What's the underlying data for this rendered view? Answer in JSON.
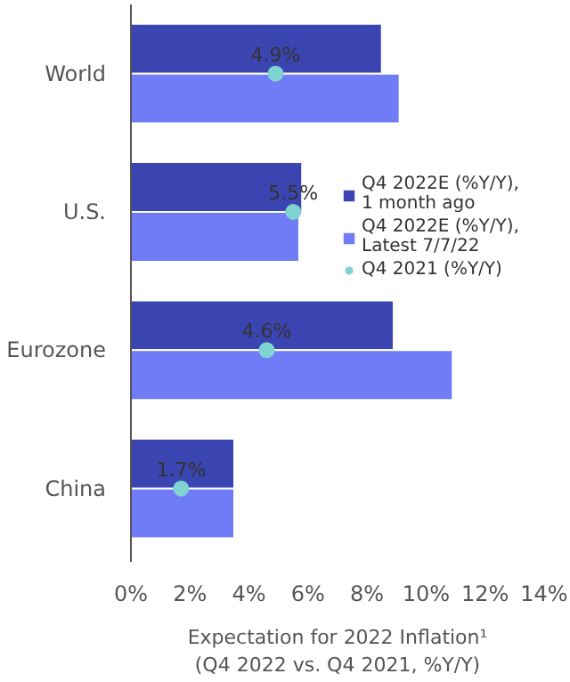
{
  "chart_data": {
    "type": "bar",
    "orientation": "horizontal",
    "categories": [
      "World",
      "U.S.",
      "Eurozone",
      "China"
    ],
    "series": [
      {
        "name": "Q4 2022E (%Y/Y), 1 month ago",
        "color": "#3b45b1",
        "values": [
          8.5,
          5.8,
          8.9,
          3.5
        ]
      },
      {
        "name": "Q4 2022E (%Y/Y), Latest 7/7/22",
        "color": "#6f7cf6",
        "values": [
          9.1,
          5.7,
          10.9,
          3.5
        ]
      },
      {
        "name": "Q4 2021 (%Y/Y)",
        "type": "scatter",
        "marker": "circle",
        "color": "#7fd3d0",
        "values": [
          4.9,
          5.5,
          4.6,
          1.7
        ],
        "value_labels": [
          "4.9%",
          "5.5%",
          "4.6%",
          "1.7%"
        ]
      }
    ],
    "xlabel": "Expectation for 2022 Inflation¹\n(Q4 2022 vs. Q4 2021, %Y/Y)",
    "xlim": [
      0,
      14
    ],
    "xticks": [
      {
        "value": 0,
        "label": "0%"
      },
      {
        "value": 2,
        "label": "2%"
      },
      {
        "value": 4,
        "label": "4%"
      },
      {
        "value": 6,
        "label": "6%"
      },
      {
        "value": 8,
        "label": "8%"
      },
      {
        "value": 10,
        "label": "10%"
      },
      {
        "value": 12,
        "label": "12%"
      },
      {
        "value": 14,
        "label": "14%"
      }
    ],
    "grid": false,
    "legend": "right"
  }
}
